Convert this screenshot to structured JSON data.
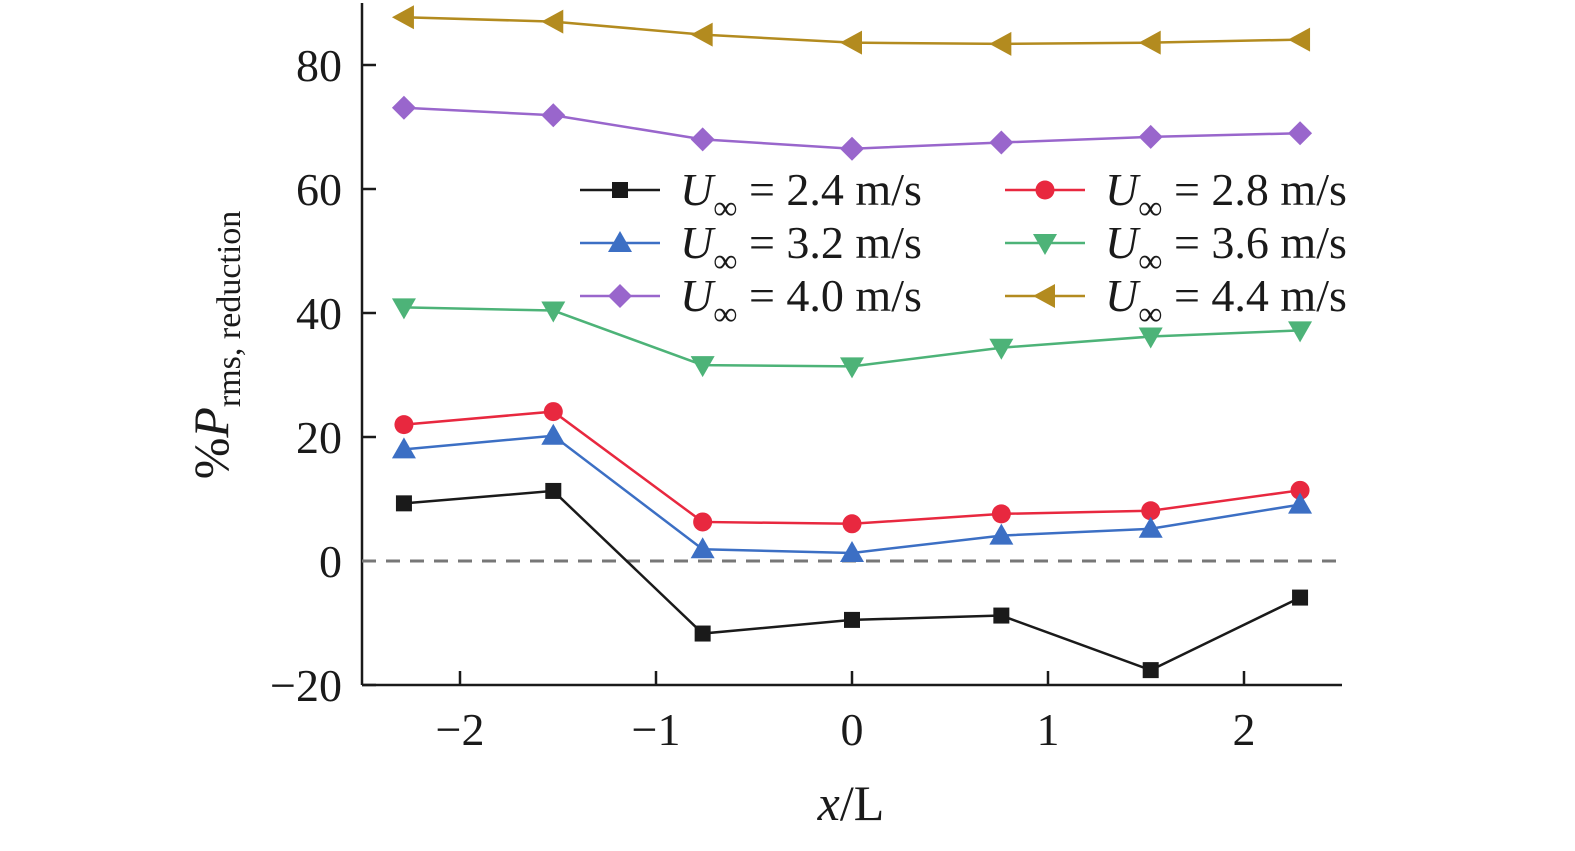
{
  "chart_data": {
    "type": "line",
    "x": [
      -2.286,
      -1.524,
      -0.762,
      0,
      0.762,
      1.524,
      2.286
    ],
    "series": [
      {
        "name": "2.4",
        "label": "U∞ = 2.4 m/s",
        "color": "#1a1a1a",
        "marker": "square",
        "values": [
          9.3,
          11.3,
          -11.7,
          -9.5,
          -8.8,
          -17.6,
          -5.9
        ]
      },
      {
        "name": "2.8",
        "label": "U∞ = 2.8 m/s",
        "color": "#e8283f",
        "marker": "circle",
        "values": [
          22.0,
          24.1,
          6.3,
          6.0,
          7.6,
          8.1,
          11.4
        ]
      },
      {
        "name": "3.2",
        "label": "U∞ = 3.2 m/s",
        "color": "#3c6fc4",
        "marker": "triangle-up",
        "values": [
          18.0,
          20.2,
          1.9,
          1.3,
          4.1,
          5.2,
          9.1
        ]
      },
      {
        "name": "3.6",
        "label": "U∞ = 3.6 m/s",
        "color": "#4db378",
        "marker": "triangle-down",
        "values": [
          40.9,
          40.4,
          31.6,
          31.4,
          34.4,
          36.2,
          37.2
        ]
      },
      {
        "name": "4.0",
        "label": "U∞ = 4.0 m/s",
        "color": "#9966cc",
        "marker": "diamond",
        "values": [
          73.1,
          71.9,
          68.0,
          66.5,
          67.5,
          68.4,
          69.0
        ]
      },
      {
        "name": "4.4",
        "label": "U∞ = 4.4 m/s",
        "color": "#b38b1f",
        "marker": "triangle-left",
        "values": [
          87.7,
          87.0,
          84.9,
          83.6,
          83.4,
          83.6,
          84.1
        ]
      }
    ],
    "xlabel": "x/L",
    "ylabel": "%P rms, reduction",
    "xlim": [
      -2.5,
      2.5
    ],
    "ylim": [
      -20,
      90
    ],
    "xticks": [
      -2,
      -1,
      0,
      1,
      2
    ],
    "xtick_labels": [
      "−2",
      "−1",
      "0",
      "1",
      "2"
    ],
    "yticks": [
      -20,
      0,
      20,
      40,
      60,
      80
    ],
    "ytick_labels": [
      "−20",
      "0",
      "20",
      "40",
      "60",
      "80"
    ],
    "reference_line": {
      "y": 0,
      "style": "dashed",
      "color": "#777777"
    },
    "legend": {
      "placement": "top-right",
      "columns": 2
    },
    "grid": false
  },
  "axis_text": {
    "xlabel_main": "x",
    "xlabel_rest": "/L",
    "ylabel_prefix": "%",
    "ylabel_main": "P",
    "ylabel_sub": "rms, reduction"
  },
  "legend_text": {
    "prefix": "U",
    "sub": "∞",
    "labels": [
      " = 2.4 m/s",
      " = 2.8 m/s",
      " = 3.2 m/s",
      " = 3.6 m/s",
      " = 4.0 m/s",
      " = 4.4 m/s"
    ]
  }
}
